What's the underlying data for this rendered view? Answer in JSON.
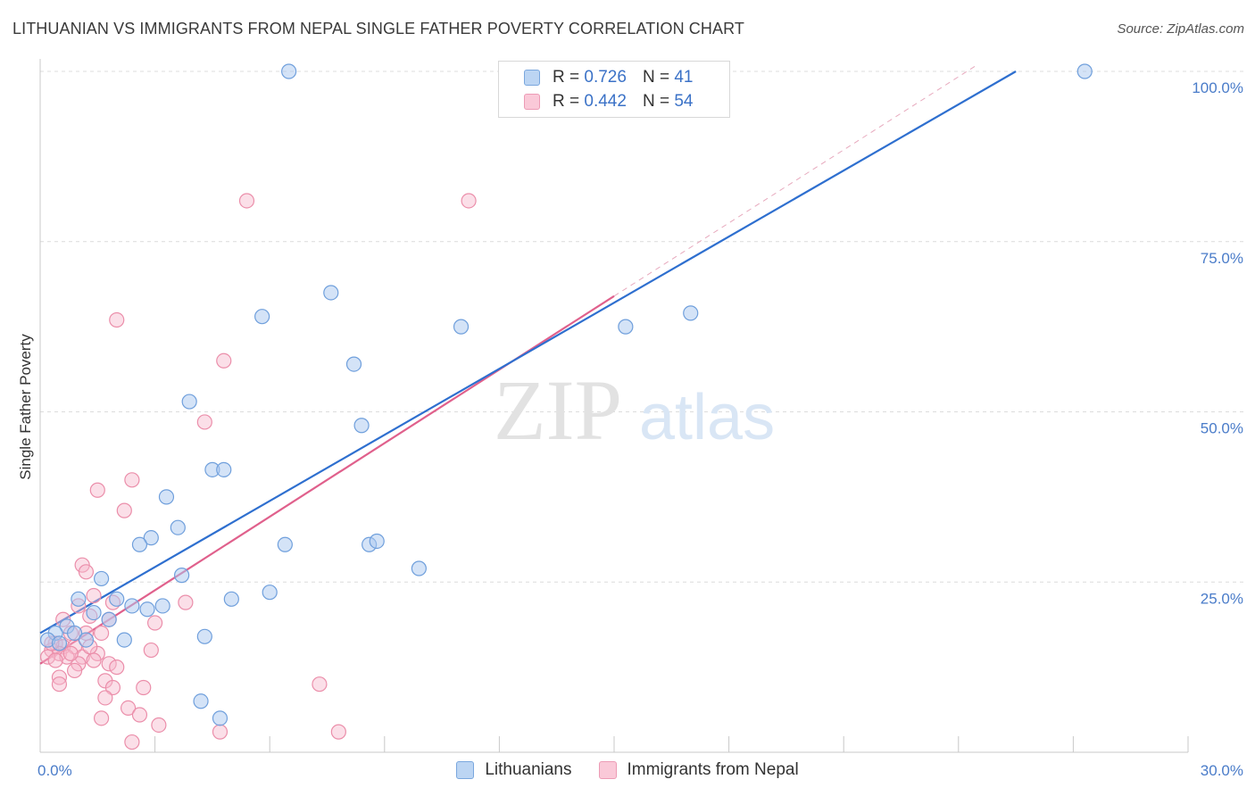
{
  "header": {
    "title": "LITHUANIAN VS IMMIGRANTS FROM NEPAL SINGLE FATHER POVERTY CORRELATION CHART",
    "source": "Source: ZipAtlas.com"
  },
  "watermark": {
    "zip": "ZIP",
    "atlas": "atlas"
  },
  "legend": {
    "rows": [
      {
        "r_label": "R =",
        "r_value": "0.726",
        "n_label": "N =",
        "n_value": "41"
      },
      {
        "r_label": "R =",
        "r_value": "0.442",
        "n_label": "N =",
        "n_value": "54"
      }
    ]
  },
  "bottom_legend": {
    "items": [
      "Lithuanians",
      "Immigrants from Nepal"
    ]
  },
  "colors": {
    "blue_fill": "#a9c8ef",
    "blue_stroke": "#6f9fdc",
    "blue_line": "#2e6fcf",
    "pink_fill": "#f6b8cb",
    "pink_stroke": "#eb8eaa",
    "pink_line": "#e0608c",
    "grid": "#dcdcdc"
  },
  "chart_data": {
    "type": "scatter",
    "title": "LITHUANIAN VS IMMIGRANTS FROM NEPAL SINGLE FATHER POVERTY CORRELATION CHART",
    "xlabel": "",
    "ylabel": "Single Father Poverty",
    "xlim": [
      0,
      30
    ],
    "ylim": [
      0,
      100
    ],
    "x_ticks": [
      {
        "value": 0,
        "label": "0.0%"
      },
      {
        "value": 30,
        "label": "30.0%"
      }
    ],
    "y_ticks": [
      {
        "value": 25,
        "label": "25.0%"
      },
      {
        "value": 50,
        "label": "50.0%"
      },
      {
        "value": 75,
        "label": "75.0%"
      },
      {
        "value": 100,
        "label": "100.0%"
      }
    ],
    "grid": true,
    "series": [
      {
        "name": "Lithuanians",
        "R": 0.726,
        "N": 41,
        "trend": {
          "x0": 0,
          "y0": 17.5,
          "x1": 25.5,
          "y1": 100
        },
        "points": [
          [
            6.5,
            100
          ],
          [
            27.3,
            100
          ],
          [
            7.6,
            67.5
          ],
          [
            5.8,
            64
          ],
          [
            15.3,
            62.5
          ],
          [
            17.0,
            64.5
          ],
          [
            11.0,
            62.5
          ],
          [
            8.2,
            57
          ],
          [
            3.9,
            51.5
          ],
          [
            8.4,
            48
          ],
          [
            4.5,
            41.5
          ],
          [
            4.8,
            41.5
          ],
          [
            3.3,
            37.5
          ],
          [
            3.6,
            33
          ],
          [
            2.9,
            31.5
          ],
          [
            2.6,
            30.5
          ],
          [
            6.4,
            30.5
          ],
          [
            8.6,
            30.5
          ],
          [
            8.8,
            31
          ],
          [
            9.9,
            27
          ],
          [
            3.7,
            26
          ],
          [
            1.6,
            25.5
          ],
          [
            1.0,
            22.5
          ],
          [
            2.0,
            22.5
          ],
          [
            5.0,
            22.5
          ],
          [
            6.0,
            23.5
          ],
          [
            2.4,
            21.5
          ],
          [
            3.2,
            21.5
          ],
          [
            2.8,
            21
          ],
          [
            1.4,
            20.5
          ],
          [
            1.8,
            19.5
          ],
          [
            0.7,
            18.5
          ],
          [
            0.4,
            17.5
          ],
          [
            0.9,
            17.5
          ],
          [
            0.2,
            16.5
          ],
          [
            1.2,
            16.5
          ],
          [
            2.2,
            16.5
          ],
          [
            4.3,
            17
          ],
          [
            0.5,
            16
          ],
          [
            4.2,
            7.5
          ],
          [
            4.7,
            5
          ]
        ]
      },
      {
        "name": "Immigrants from Nepal",
        "R": 0.442,
        "N": 54,
        "trend": {
          "x0": 0,
          "y0": 13,
          "x1": 15,
          "y1": 67
        },
        "extension": {
          "x0": 15,
          "y0": 67,
          "x1": 24.5,
          "y1": 101
        },
        "points": [
          [
            5.4,
            81
          ],
          [
            11.2,
            81
          ],
          [
            2.0,
            63.5
          ],
          [
            4.8,
            57.5
          ],
          [
            4.3,
            48.5
          ],
          [
            2.4,
            40
          ],
          [
            1.5,
            38.5
          ],
          [
            2.2,
            35.5
          ],
          [
            1.1,
            27.5
          ],
          [
            1.2,
            26.5
          ],
          [
            1.4,
            23
          ],
          [
            3.8,
            22
          ],
          [
            1.0,
            21.5
          ],
          [
            1.9,
            22
          ],
          [
            0.6,
            19.5
          ],
          [
            1.3,
            20
          ],
          [
            1.8,
            19.5
          ],
          [
            3.0,
            19
          ],
          [
            0.8,
            17.5
          ],
          [
            1.2,
            17.5
          ],
          [
            0.4,
            16
          ],
          [
            0.6,
            15.5
          ],
          [
            0.9,
            15.5
          ],
          [
            0.3,
            15
          ],
          [
            1.5,
            14.5
          ],
          [
            0.5,
            14.5
          ],
          [
            0.2,
            14
          ],
          [
            0.7,
            14
          ],
          [
            1.1,
            14
          ],
          [
            1.4,
            13.5
          ],
          [
            0.4,
            13.5
          ],
          [
            2.9,
            15
          ],
          [
            1.0,
            13
          ],
          [
            1.8,
            13
          ],
          [
            2.0,
            12.5
          ],
          [
            0.9,
            12
          ],
          [
            0.5,
            11
          ],
          [
            1.7,
            10.5
          ],
          [
            0.5,
            10
          ],
          [
            2.7,
            9.5
          ],
          [
            7.3,
            10
          ],
          [
            1.9,
            9.5
          ],
          [
            1.7,
            8
          ],
          [
            2.3,
            6.5
          ],
          [
            2.6,
            5.5
          ],
          [
            1.6,
            5
          ],
          [
            3.1,
            4
          ],
          [
            4.7,
            3
          ],
          [
            7.8,
            3
          ],
          [
            2.4,
            1.5
          ],
          [
            0.3,
            16
          ],
          [
            1.6,
            17.5
          ],
          [
            0.8,
            14.5
          ],
          [
            1.3,
            15.5
          ]
        ]
      }
    ]
  }
}
